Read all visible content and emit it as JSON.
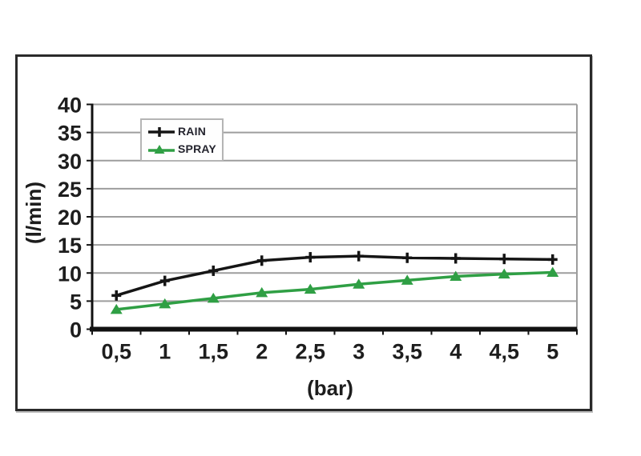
{
  "figure": {
    "y_axis_title": "(l/min)",
    "x_axis_title": "(bar)"
  },
  "colors": {
    "grid": "#9d9d9d",
    "axis": "#111111",
    "text": "#1d1d1d",
    "frame": "#2a2a2a",
    "legend_border": "#b5b5b5",
    "rain": "#151515",
    "spray": "#2f9f44"
  },
  "chart_data": {
    "type": "line",
    "title": "",
    "xlabel": "(bar)",
    "ylabel": "(l/min)",
    "categories": [
      "0,5",
      "1",
      "1,5",
      "2",
      "2,5",
      "3",
      "3,5",
      "4",
      "4,5",
      "5"
    ],
    "series": [
      {
        "name": "RAIN",
        "color": "#151515",
        "marker": "plus",
        "values": [
          6,
          8.6,
          10.4,
          12.2,
          12.8,
          13,
          12.7,
          12.6,
          12.5,
          12.4
        ]
      },
      {
        "name": "SPRAY",
        "color": "#2f9f44",
        "marker": "triangle",
        "values": [
          3.5,
          4.5,
          5.5,
          6.5,
          7.1,
          8,
          8.7,
          9.4,
          9.8,
          10.1
        ]
      }
    ],
    "ylim": [
      0,
      40
    ],
    "ytick_step": 5,
    "grid": true,
    "legend_position": "top-left-inside"
  }
}
